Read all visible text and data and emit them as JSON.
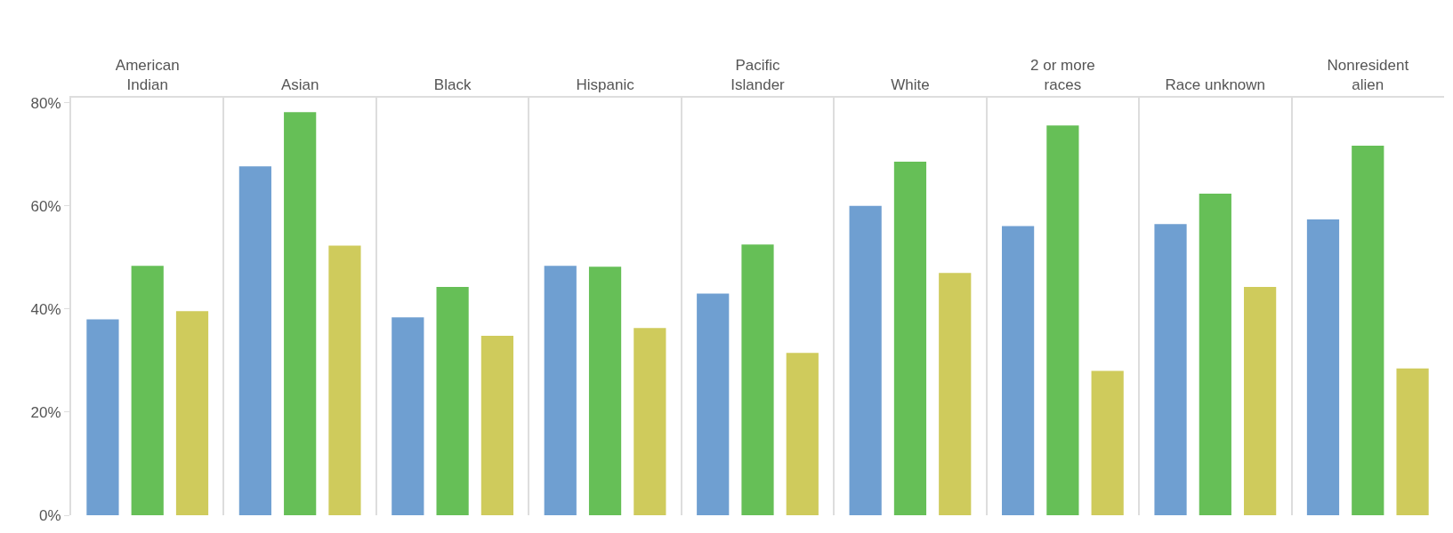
{
  "chart_data": {
    "type": "bar",
    "categories": [
      "American\nIndian",
      "Asian",
      "Black",
      "Hispanic",
      "Pacific\nIslander",
      "White",
      "2 or more\nraces",
      "Race unknown",
      "Nonresident\nalien"
    ],
    "series": [
      {
        "color": "#6f9fd1",
        "values": [
          38,
          67.7,
          38.4,
          48.4,
          43,
          60,
          56.1,
          56.5,
          57.4
        ]
      },
      {
        "color": "#66bf57",
        "values": [
          48.4,
          78.2,
          44.3,
          48.2,
          52.5,
          68.6,
          75.6,
          62.4,
          71.7
        ]
      },
      {
        "color": "#cfcb5c",
        "values": [
          39.6,
          52.3,
          34.8,
          36.3,
          31.5,
          47,
          28,
          44.3,
          28.5
        ]
      }
    ],
    "ylim": [
      0,
      81
    ],
    "yticks": [
      {
        "value": 0,
        "label": "0%"
      },
      {
        "value": 20,
        "label": "20%"
      },
      {
        "value": 40,
        "label": "40%"
      },
      {
        "value": 60,
        "label": "60%"
      },
      {
        "value": 80,
        "label": "80%"
      }
    ],
    "grid": "x"
  }
}
